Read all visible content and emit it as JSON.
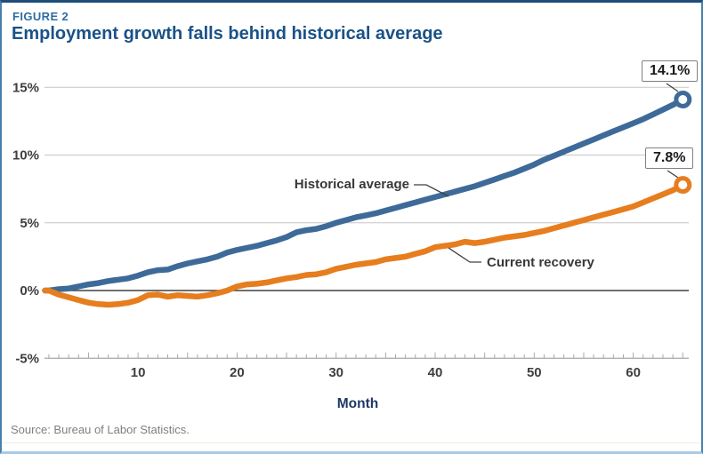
{
  "figure": {
    "label": "FIGURE 2",
    "title": "Employment growth falls behind historical average",
    "source": "Source: Bureau of Labor Statistics."
  },
  "colors": {
    "historical": "#3e6a99",
    "current": "#e67d1e",
    "grid": "#c6c6c6",
    "zero_line": "#404040",
    "axis": "#a8a8a8",
    "tick_text": "#3f3f3f",
    "axis_title_text": "#1f3864",
    "connector": "#404040",
    "title_blue": "#1a5288",
    "figure_label_blue": "#2d6da3"
  },
  "chart_data": {
    "type": "line",
    "title": "Employment growth falls behind historical average",
    "xlabel": "Month",
    "ylabel": "",
    "xlim": [
      0,
      66
    ],
    "ylim": [
      -5,
      15
    ],
    "grid": "horizontal",
    "x_ticks": [
      10,
      20,
      30,
      40,
      50,
      60
    ],
    "y_ticks": [
      {
        "value": 15,
        "label": "15%"
      },
      {
        "value": 10,
        "label": "10%"
      },
      {
        "value": 5,
        "label": "5%"
      },
      {
        "value": 0,
        "label": "0%"
      },
      {
        "value": -5,
        "label": "-5%"
      }
    ],
    "months": [
      1,
      2,
      3,
      4,
      5,
      6,
      7,
      8,
      9,
      10,
      11,
      12,
      13,
      14,
      15,
      16,
      17,
      18,
      19,
      20,
      21,
      22,
      23,
      24,
      25,
      26,
      27,
      28,
      29,
      30,
      31,
      32,
      33,
      34,
      35,
      36,
      37,
      38,
      39,
      40,
      41,
      42,
      43,
      44,
      45,
      46,
      47,
      48,
      49,
      50,
      51,
      52,
      53,
      54,
      55,
      56,
      57,
      58,
      59,
      60,
      61,
      62,
      63,
      64,
      65
    ],
    "series": [
      {
        "name": "Historical average",
        "end_label": "14.1%",
        "end_value": 14.1,
        "color": "#3e6a99",
        "values": [
          0.0,
          0.1,
          0.15,
          0.3,
          0.45,
          0.55,
          0.7,
          0.8,
          0.9,
          1.1,
          1.35,
          1.5,
          1.55,
          1.8,
          2.0,
          2.15,
          2.3,
          2.5,
          2.8,
          3.0,
          3.15,
          3.3,
          3.5,
          3.7,
          3.95,
          4.3,
          4.45,
          4.55,
          4.75,
          5.0,
          5.2,
          5.4,
          5.55,
          5.7,
          5.9,
          6.1,
          6.3,
          6.5,
          6.7,
          6.9,
          7.1,
          7.3,
          7.5,
          7.7,
          7.95,
          8.2,
          8.45,
          8.7,
          9.0,
          9.3,
          9.65,
          9.95,
          10.25,
          10.55,
          10.85,
          11.15,
          11.45,
          11.75,
          12.05,
          12.35,
          12.65,
          13.0,
          13.35,
          13.7,
          14.1
        ]
      },
      {
        "name": "Current recovery",
        "end_label": "7.8%",
        "end_value": 7.8,
        "color": "#e67d1e",
        "values": [
          0.0,
          -0.3,
          -0.5,
          -0.7,
          -0.9,
          -1.0,
          -1.05,
          -1.0,
          -0.9,
          -0.7,
          -0.35,
          -0.3,
          -0.45,
          -0.35,
          -0.4,
          -0.45,
          -0.35,
          -0.2,
          0.0,
          0.3,
          0.45,
          0.5,
          0.6,
          0.75,
          0.9,
          1.0,
          1.15,
          1.2,
          1.35,
          1.6,
          1.75,
          1.9,
          2.0,
          2.1,
          2.3,
          2.4,
          2.5,
          2.7,
          2.9,
          3.2,
          3.3,
          3.4,
          3.6,
          3.5,
          3.6,
          3.75,
          3.9,
          4.0,
          4.1,
          4.25,
          4.4,
          4.6,
          4.8,
          5.0,
          5.2,
          5.4,
          5.6,
          5.8,
          6.0,
          6.2,
          6.5,
          6.8,
          7.1,
          7.4,
          7.8
        ]
      }
    ],
    "annotations": [
      "Historical average",
      "Current recovery"
    ],
    "legend_position": "inline-labels"
  }
}
